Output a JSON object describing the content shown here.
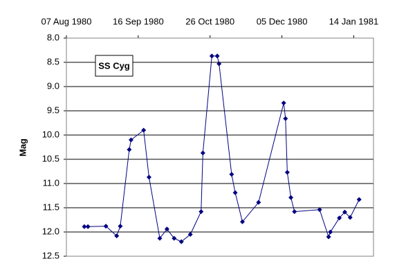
{
  "chart_data": {
    "type": "line",
    "annotation": "SS Cyg",
    "y_label": "Mag",
    "x": [
      "1980-08-17",
      "1980-08-19",
      "1980-08-29",
      "1980-09-04",
      "1980-09-06",
      "1980-09-11",
      "1980-09-12",
      "1980-09-19",
      "1980-09-22",
      "1980-09-28",
      "1980-10-02",
      "1980-10-06",
      "1980-10-10",
      "1980-10-15",
      "1980-10-21",
      "1980-10-22",
      "1980-10-27",
      "1980-10-30",
      "1980-10-31",
      "1980-11-07",
      "1980-11-09",
      "1980-11-13",
      "1980-11-22",
      "1980-12-06",
      "1980-12-07",
      "1980-12-08",
      "1980-12-10",
      "1980-12-12",
      "1980-12-26",
      "1980-12-31",
      "1981-01-01",
      "1981-01-06",
      "1981-01-09",
      "1981-01-12",
      "1981-01-17"
    ],
    "series": [
      {
        "color": "#000080",
        "values": [
          11.89,
          11.89,
          11.88,
          12.08,
          11.88,
          10.3,
          10.1,
          9.9,
          10.87,
          12.13,
          11.94,
          12.13,
          12.2,
          12.05,
          11.58,
          10.37,
          8.37,
          8.37,
          8.53,
          10.81,
          11.19,
          11.79,
          11.39,
          9.34,
          9.66,
          10.77,
          11.29,
          11.58,
          11.54,
          12.1,
          12.0,
          11.71,
          11.59,
          11.7,
          11.33
        ]
      }
    ],
    "xlim": [
      "1980-08-07",
      "1981-01-25"
    ],
    "xticks": [
      {
        "value": "1980-08-07",
        "label": "07 Aug 1980"
      },
      {
        "value": "1980-09-16",
        "label": "16 Sep 1980"
      },
      {
        "value": "1980-10-26",
        "label": "26 Oct 1980"
      },
      {
        "value": "1980-12-05",
        "label": "05 Dec 1980"
      },
      {
        "value": "1981-01-14",
        "label": "14 Jan 1981"
      }
    ],
    "ylim": [
      8,
      12.5
    ],
    "y_reversed": true,
    "yticks": [
      {
        "value": 8,
        "label": "8.0"
      },
      {
        "value": 8.5,
        "label": "8.5"
      },
      {
        "value": 9,
        "label": "9.0"
      },
      {
        "value": 9.5,
        "label": "9.5"
      },
      {
        "value": 10,
        "label": "10.0"
      },
      {
        "value": 10.5,
        "label": "10.5"
      },
      {
        "value": 11,
        "label": "11.0"
      },
      {
        "value": 11.5,
        "label": "11.5"
      },
      {
        "value": 12,
        "label": "12.0"
      },
      {
        "value": 12.5,
        "label": "12.5"
      }
    ],
    "grid": true
  }
}
